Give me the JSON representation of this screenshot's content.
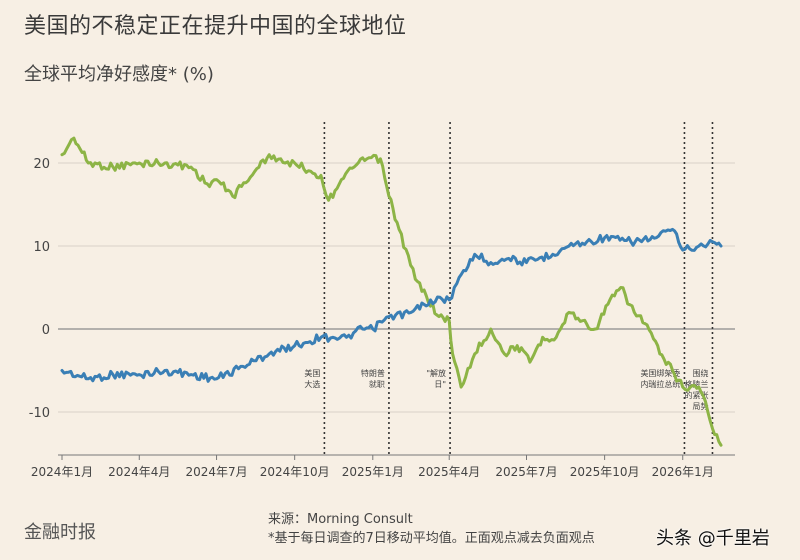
{
  "header": {
    "title": "美国的不稳定正在提升中国的全球地位",
    "subtitle": "全球平均净好感度* (%)"
  },
  "footer": {
    "brand": "金融时报",
    "source": "来源：Morning Consult",
    "note": "*基于每日调查的7日移动平均值。正面观点减去负面观点",
    "watermark": "头条 @千里岩"
  },
  "colors": {
    "china": "#3a7fb5",
    "usa": "#8db446",
    "grid": "#d8d2c8",
    "zero": "#8a8a8a",
    "event": "#333333"
  },
  "chart_data": {
    "type": "line",
    "ylim": [
      -15,
      25
    ],
    "yticks": [
      20,
      10,
      0,
      -10
    ],
    "xticks": [
      "2024年1月",
      "2024年4月",
      "2024年7月",
      "2024年10月",
      "2025年1月",
      "2025年4月",
      "2025年7月",
      "2025年10月",
      "2026年1月"
    ],
    "xtick_dates": [
      "2024-01-01",
      "2024-04-01",
      "2024-07-01",
      "2024-10-01",
      "2025-01-01",
      "2025-04-01",
      "2025-07-01",
      "2025-10-01",
      "2026-01-01"
    ],
    "series": [
      {
        "color_key": "usa",
        "dates": [
          "2024-01-01",
          "2024-01-15",
          "2024-02-01",
          "2024-03-01",
          "2024-04-01",
          "2024-05-01",
          "2024-06-01",
          "2024-06-20",
          "2024-07-01",
          "2024-07-20",
          "2024-08-15",
          "2024-09-01",
          "2024-09-20",
          "2024-10-01",
          "2024-10-20",
          "2024-11-01",
          "2024-11-10",
          "2024-11-25",
          "2024-12-10",
          "2024-12-25",
          "2025-01-10",
          "2025-01-20",
          "2025-02-01",
          "2025-02-20",
          "2025-03-05",
          "2025-03-20",
          "2025-04-01",
          "2025-04-05",
          "2025-04-15",
          "2025-05-01",
          "2025-05-20",
          "2025-06-05",
          "2025-06-20",
          "2025-07-05",
          "2025-07-20",
          "2025-08-05",
          "2025-08-20",
          "2025-09-05",
          "2025-09-20",
          "2025-10-05",
          "2025-10-20",
          "2025-11-05",
          "2025-11-20",
          "2025-12-05",
          "2025-12-20",
          "2026-01-01",
          "2026-01-10",
          "2026-01-20",
          "2026-01-25",
          "2026-02-05",
          "2026-02-15"
        ],
        "values": [
          21,
          23,
          20,
          19.5,
          20,
          20,
          19.5,
          17.5,
          18,
          16,
          19,
          21,
          20,
          20,
          19,
          18.5,
          15.5,
          18,
          19.5,
          20.5,
          20.5,
          16,
          12,
          6,
          4,
          1.5,
          1,
          -3,
          -7,
          -3,
          0,
          -3,
          -2,
          -4,
          -1,
          -1,
          2,
          1,
          0,
          3,
          5,
          2,
          0.5,
          -3,
          -5,
          -7,
          -7,
          -7,
          -8,
          -12,
          -14
        ]
      },
      {
        "color_key": "china",
        "dates": [
          "2024-01-01",
          "2024-02-01",
          "2024-03-01",
          "2024-04-01",
          "2024-05-01",
          "2024-06-01",
          "2024-07-01",
          "2024-08-01",
          "2024-09-01",
          "2024-10-01",
          "2024-11-01",
          "2024-11-15",
          "2024-12-01",
          "2024-12-20",
          "2025-01-01",
          "2025-01-20",
          "2025-02-15",
          "2025-03-10",
          "2025-04-01",
          "2025-04-10",
          "2025-05-01",
          "2025-05-20",
          "2025-06-10",
          "2025-07-01",
          "2025-08-01",
          "2025-08-20",
          "2025-09-10",
          "2025-10-01",
          "2025-11-01",
          "2025-12-01",
          "2025-12-20",
          "2026-01-01",
          "2026-01-20",
          "2026-02-05",
          "2026-02-15"
        ],
        "values": [
          -5,
          -6,
          -5.5,
          -5.5,
          -5,
          -5.5,
          -6,
          -4.5,
          -3,
          -2,
          -1,
          -1,
          -1,
          0,
          0,
          1.5,
          2,
          3.5,
          3.5,
          5.5,
          9,
          8,
          8.5,
          8,
          9,
          10,
          10.5,
          11,
          10.5,
          11,
          12,
          9.5,
          10,
          10.5,
          10
        ]
      }
    ],
    "events": [
      {
        "date": "2024-11-05",
        "label_lines": [
          "美国",
          "大选"
        ]
      },
      {
        "date": "2025-01-20",
        "label_lines": [
          "特朗普",
          "就职"
        ]
      },
      {
        "date": "2025-04-02",
        "label_lines": [
          "\"解放",
          "日\""
        ]
      },
      {
        "date": "2026-01-03",
        "label_lines": [
          "美国绑架委",
          "内瑞拉总统"
        ]
      },
      {
        "date": "2026-02-05",
        "label_lines": [
          "围绕",
          "格陵兰",
          "的紧张",
          "局势"
        ]
      }
    ]
  }
}
